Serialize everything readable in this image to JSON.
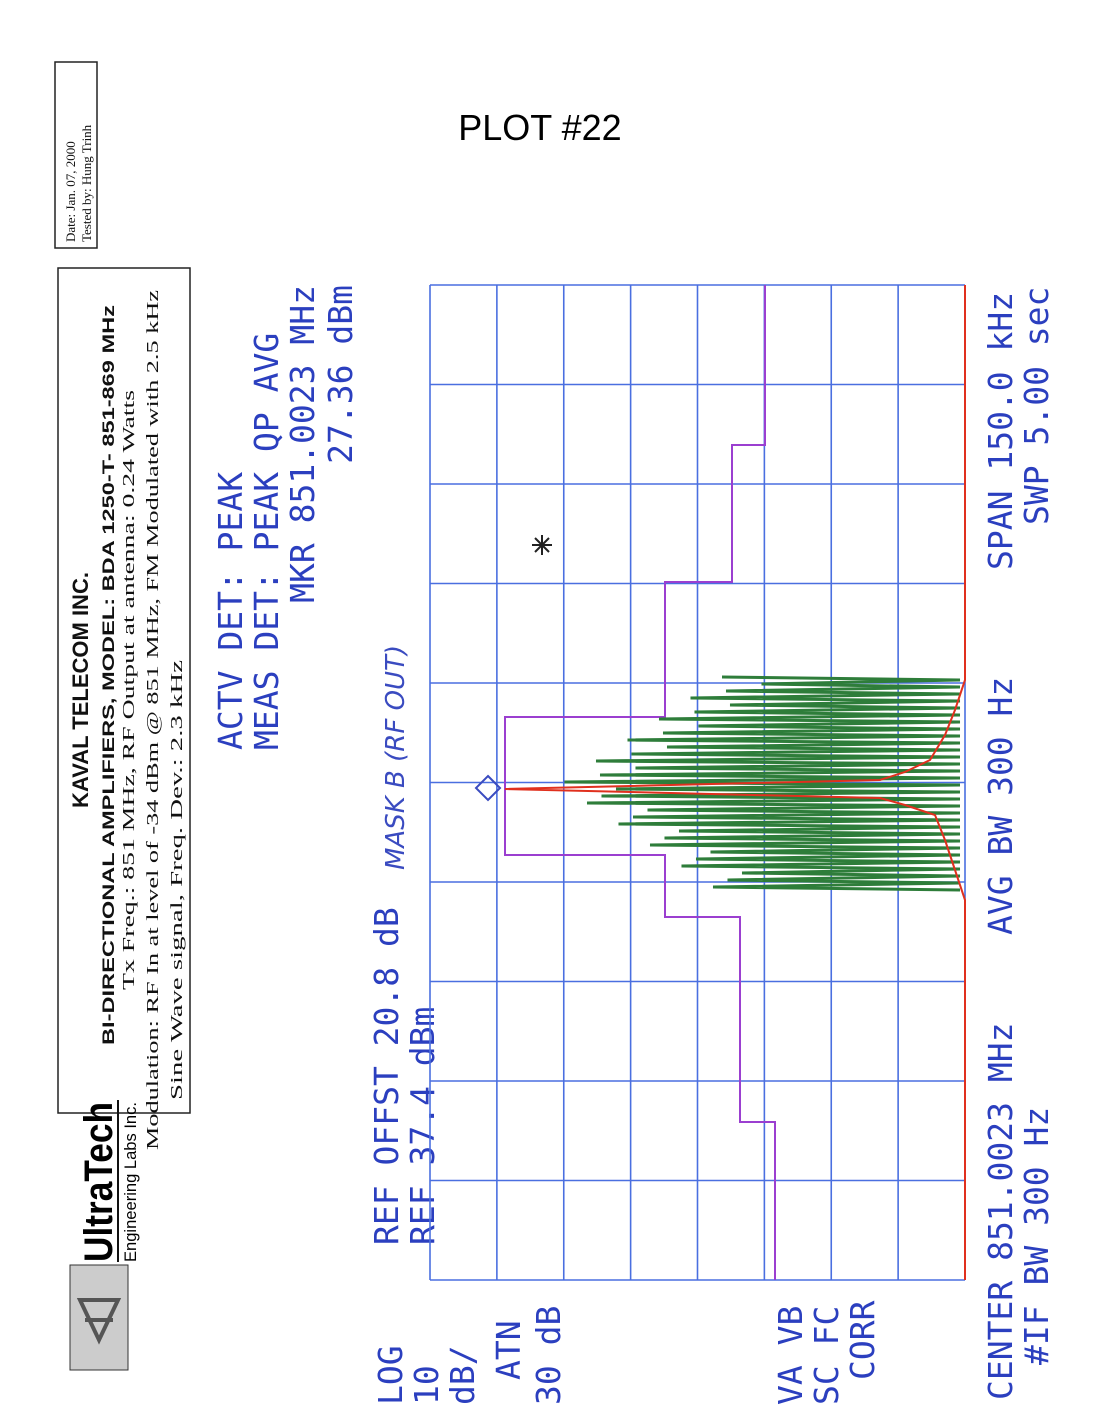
{
  "plot_title": "PLOT #22",
  "date_box": {
    "date": "Date: Jan. 07, 2000",
    "tested_by": "Tested by: Hung Trinh"
  },
  "logo": {
    "name": "UltraTech",
    "subtitle": "Engineering Labs Inc."
  },
  "header": {
    "company": "KAVAL TELECOM INC.",
    "lines": [
      "BI-DIRECTIONAL AMPLIFIERS, MODEL: BDA 1250-T- 851-869 MHz",
      "Tx Freq.: 851 MHz, RF Output at antenna: 0.24 Watts",
      "Modulation: RF In at level of -34 dBm @ 851 MHz, FM Modulated with 2.5 kHz",
      "Sine Wave signal, Freq. Dev.: 2.3 kHz"
    ]
  },
  "analyzer": {
    "actv_det": "ACTV DET: PEAK",
    "meas_det": "MEAS DET: PEAK QP AVG",
    "marker_freq": "MKR 851.0023 MHz",
    "marker_level": "27.36 dBm",
    "ref_offset": "REF OFFST 20.8 dB",
    "ref_level": "REF 37.4 dBm",
    "mask_note": "MASK B (RF OUT)",
    "left_panel": [
      "LOG",
      "10",
      "dB/",
      "ATN",
      "30 dB",
      "VA VB",
      "SC FC",
      "CORR"
    ],
    "center": "CENTER 851.0023 MHz",
    "if_bw": "#IF BW 300 Hz",
    "avg_bw": "AVG BW 300 Hz",
    "span": "SPAN 150.0 kHz",
    "sweep": "SWP 5.00 sec"
  }
}
